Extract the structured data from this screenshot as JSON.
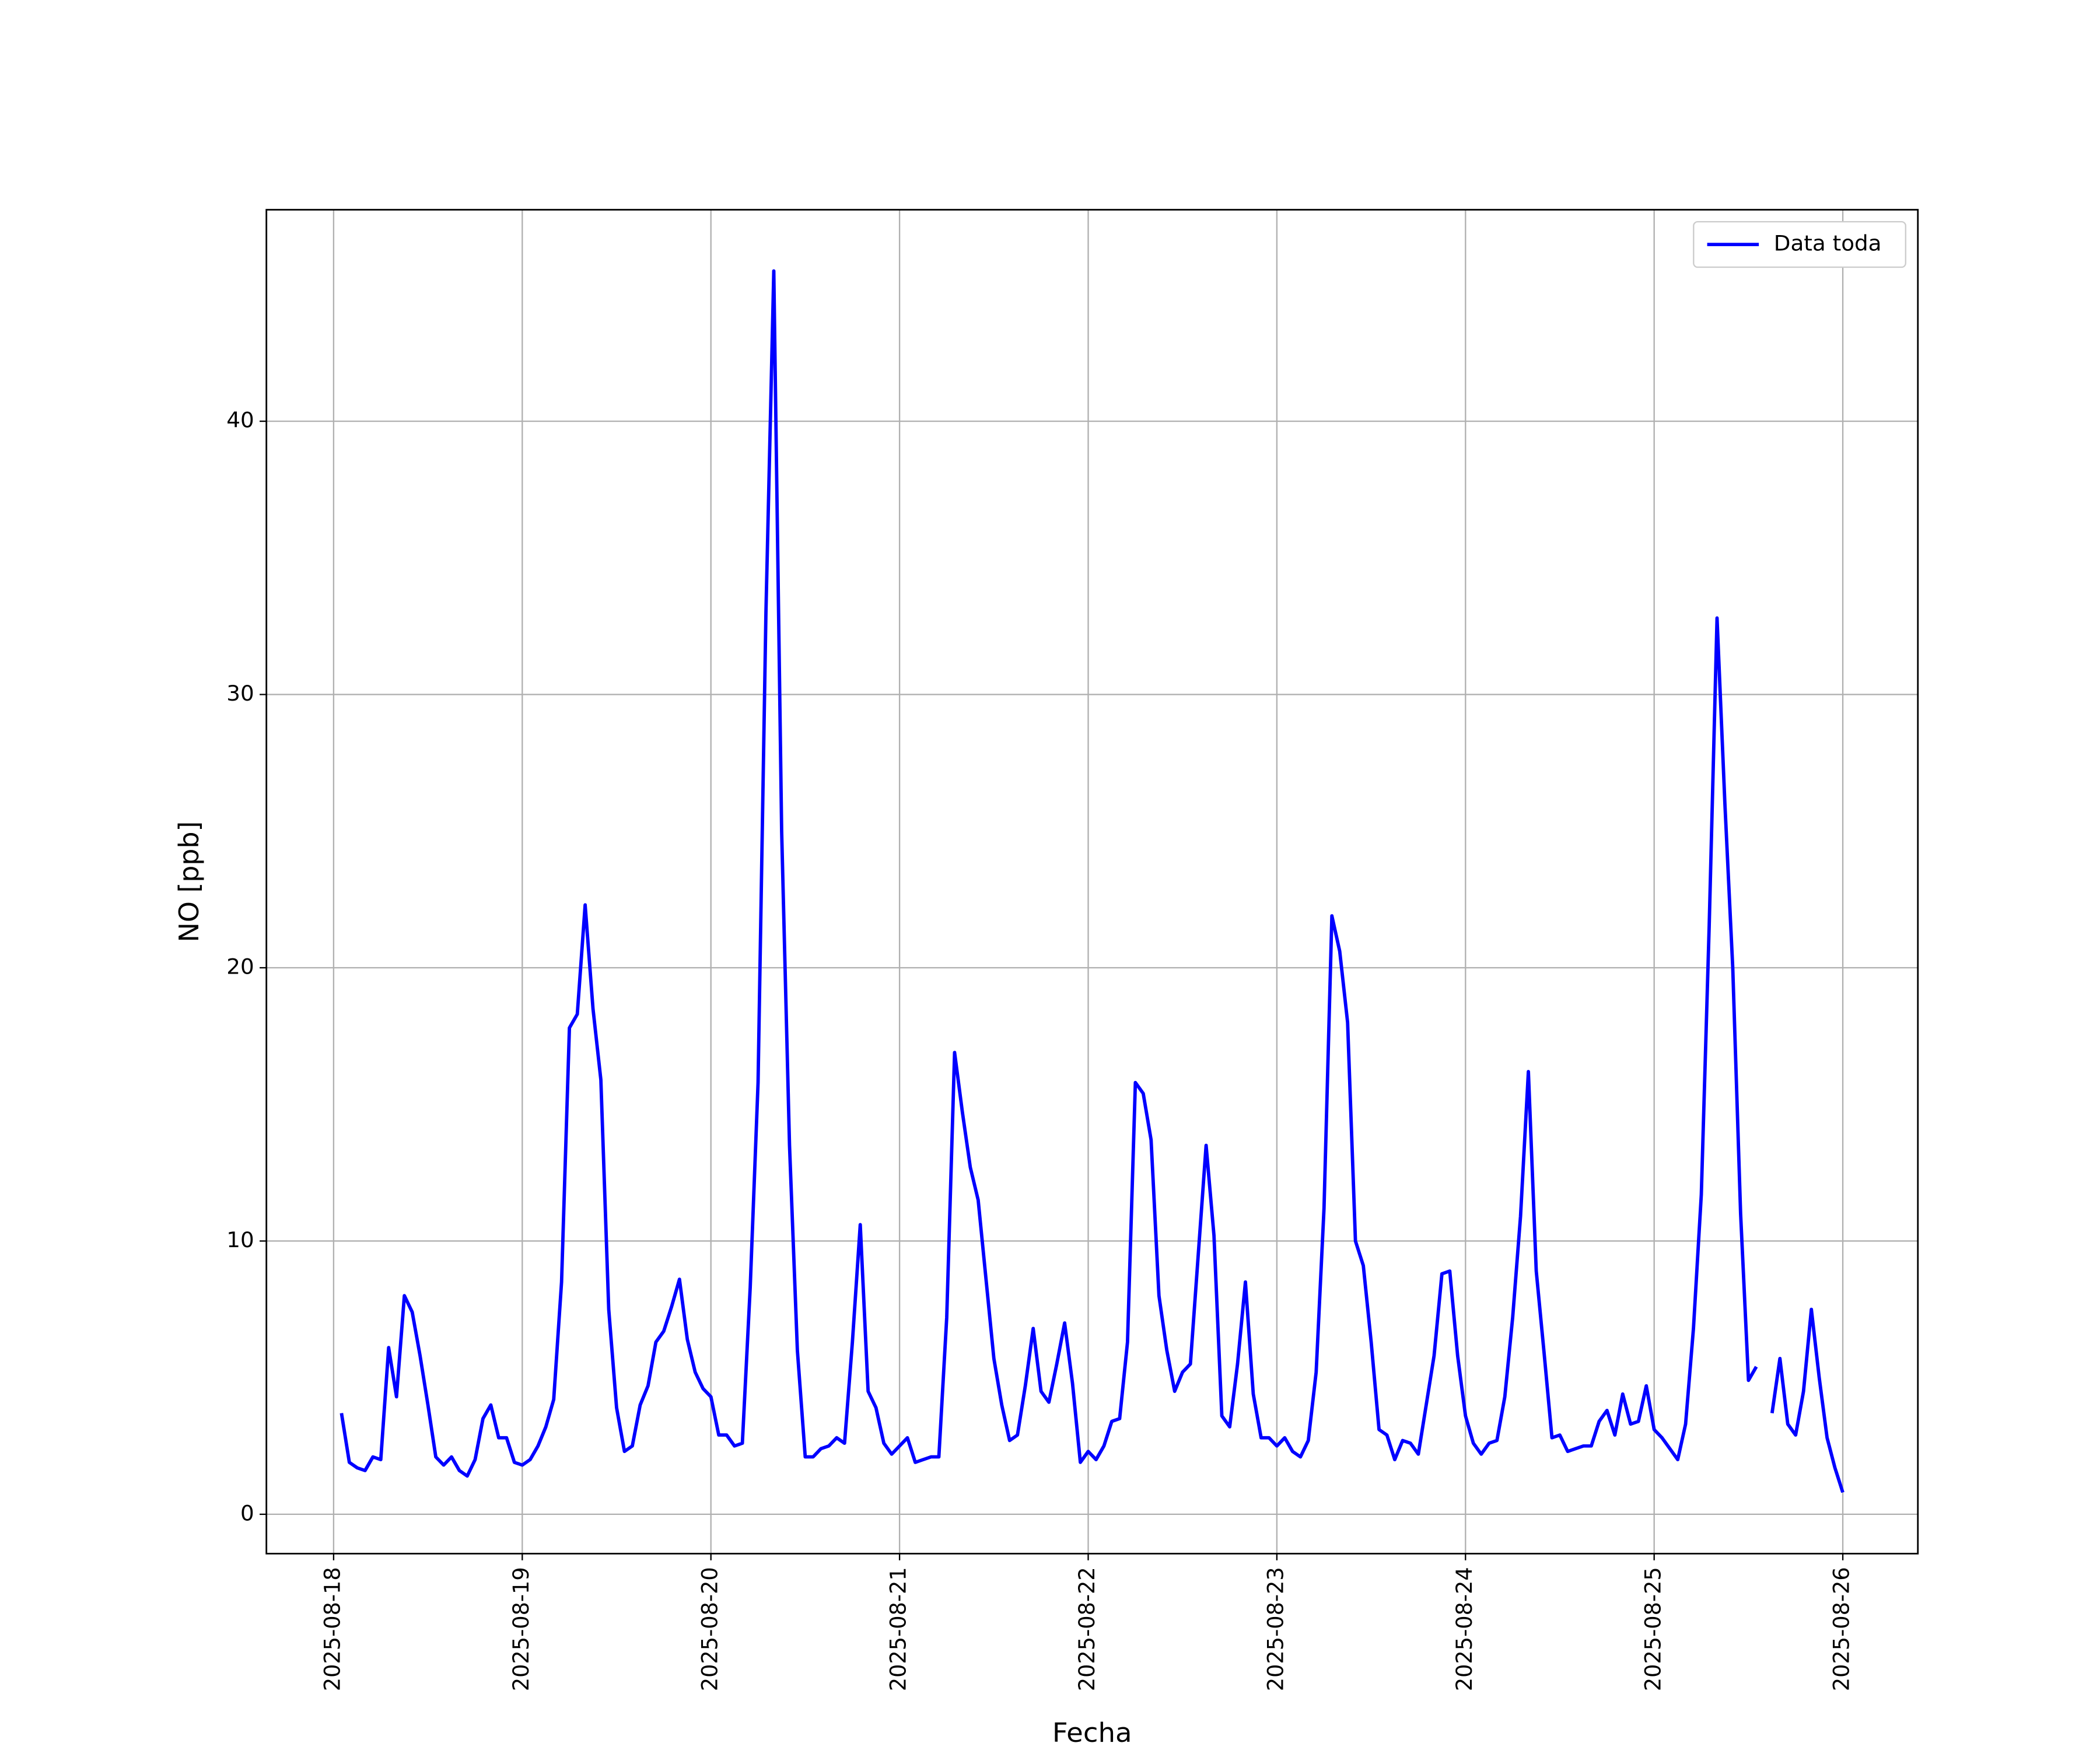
{
  "chart_data": {
    "type": "line",
    "xlabel": "Fecha",
    "ylabel": "NO [ppb]",
    "xlim": [
      "2025-08-17T15:27",
      "2025-08-26T09:33"
    ],
    "xticks": [
      "2025-08-18",
      "2025-08-19",
      "2025-08-20",
      "2025-08-21",
      "2025-08-22",
      "2025-08-23",
      "2025-08-24",
      "2025-08-25",
      "2025-08-26"
    ],
    "ylim": [
      -1.44,
      47.74
    ],
    "yticks": [
      0,
      10,
      20,
      30,
      40
    ],
    "grid": true,
    "legend": "upper right",
    "x": [
      "2025-08-18T01:00",
      "2025-08-18T02:00",
      "2025-08-18T03:00",
      "2025-08-18T04:00",
      "2025-08-18T05:00",
      "2025-08-18T06:00",
      "2025-08-18T07:00",
      "2025-08-18T08:00",
      "2025-08-18T09:00",
      "2025-08-18T10:00",
      "2025-08-18T11:00",
      "2025-08-18T12:00",
      "2025-08-18T13:00",
      "2025-08-18T14:00",
      "2025-08-18T15:00",
      "2025-08-18T16:00",
      "2025-08-18T17:00",
      "2025-08-18T18:00",
      "2025-08-18T19:00",
      "2025-08-18T20:00",
      "2025-08-18T21:00",
      "2025-08-18T22:00",
      "2025-08-18T23:00",
      "2025-08-19T00:00",
      "2025-08-19T01:00",
      "2025-08-19T02:00",
      "2025-08-19T03:00",
      "2025-08-19T04:00",
      "2025-08-19T05:00",
      "2025-08-19T06:00",
      "2025-08-19T07:00",
      "2025-08-19T08:00",
      "2025-08-19T09:00",
      "2025-08-19T10:00",
      "2025-08-19T11:00",
      "2025-08-19T12:00",
      "2025-08-19T13:00",
      "2025-08-19T14:00",
      "2025-08-19T15:00",
      "2025-08-19T16:00",
      "2025-08-19T17:00",
      "2025-08-19T18:00",
      "2025-08-19T19:00",
      "2025-08-19T20:00",
      "2025-08-19T21:00",
      "2025-08-19T22:00",
      "2025-08-19T23:00",
      "2025-08-20T00:00",
      "2025-08-20T01:00",
      "2025-08-20T02:00",
      "2025-08-20T03:00",
      "2025-08-20T04:00",
      "2025-08-20T05:00",
      "2025-08-20T06:00",
      "2025-08-20T07:00",
      "2025-08-20T08:00",
      "2025-08-20T09:00",
      "2025-08-20T10:00",
      "2025-08-20T11:00",
      "2025-08-20T12:00",
      "2025-08-20T13:00",
      "2025-08-20T14:00",
      "2025-08-20T15:00",
      "2025-08-20T16:00",
      "2025-08-20T17:00",
      "2025-08-20T18:00",
      "2025-08-20T19:00",
      "2025-08-20T20:00",
      "2025-08-20T21:00",
      "2025-08-20T22:00",
      "2025-08-20T23:00",
      "2025-08-21T00:00",
      "2025-08-21T01:00",
      "2025-08-21T02:00",
      "2025-08-21T03:00",
      "2025-08-21T04:00",
      "2025-08-21T05:00",
      "2025-08-21T06:00",
      "2025-08-21T07:00",
      "2025-08-21T08:00",
      "2025-08-21T09:00",
      "2025-08-21T10:00",
      "2025-08-21T11:00",
      "2025-08-21T12:00",
      "2025-08-21T13:00",
      "2025-08-21T14:00",
      "2025-08-21T15:00",
      "2025-08-21T16:00",
      "2025-08-21T17:00",
      "2025-08-21T18:00",
      "2025-08-21T19:00",
      "2025-08-21T20:00",
      "2025-08-21T21:00",
      "2025-08-21T22:00",
      "2025-08-21T23:00",
      "2025-08-22T00:00",
      "2025-08-22T01:00",
      "2025-08-22T02:00",
      "2025-08-22T03:00",
      "2025-08-22T04:00",
      "2025-08-22T05:00",
      "2025-08-22T06:00",
      "2025-08-22T07:00",
      "2025-08-22T08:00",
      "2025-08-22T09:00",
      "2025-08-22T10:00",
      "2025-08-22T11:00",
      "2025-08-22T12:00",
      "2025-08-22T13:00",
      "2025-08-22T14:00",
      "2025-08-22T15:00",
      "2025-08-22T16:00",
      "2025-08-22T17:00",
      "2025-08-22T18:00",
      "2025-08-22T19:00",
      "2025-08-22T20:00",
      "2025-08-22T21:00",
      "2025-08-22T22:00",
      "2025-08-22T23:00",
      "2025-08-23T00:00",
      "2025-08-23T01:00",
      "2025-08-23T02:00",
      "2025-08-23T03:00",
      "2025-08-23T04:00",
      "2025-08-23T05:00",
      "2025-08-23T06:00",
      "2025-08-23T07:00",
      "2025-08-23T08:00",
      "2025-08-23T09:00",
      "2025-08-23T10:00",
      "2025-08-23T11:00",
      "2025-08-23T12:00",
      "2025-08-23T13:00",
      "2025-08-23T14:00",
      "2025-08-23T15:00",
      "2025-08-23T16:00",
      "2025-08-23T17:00",
      "2025-08-23T18:00",
      "2025-08-23T19:00",
      "2025-08-23T20:00",
      "2025-08-23T21:00",
      "2025-08-23T22:00",
      "2025-08-23T23:00",
      "2025-08-24T00:00",
      "2025-08-24T01:00",
      "2025-08-24T02:00",
      "2025-08-24T03:00",
      "2025-08-24T04:00",
      "2025-08-24T05:00",
      "2025-08-24T06:00",
      "2025-08-24T07:00",
      "2025-08-24T08:00",
      "2025-08-24T09:00",
      "2025-08-24T10:00",
      "2025-08-24T11:00",
      "2025-08-24T12:00",
      "2025-08-24T13:00",
      "2025-08-24T14:00",
      "2025-08-24T15:00",
      "2025-08-24T16:00",
      "2025-08-24T17:00",
      "2025-08-24T18:00",
      "2025-08-24T19:00",
      "2025-08-24T20:00",
      "2025-08-24T21:00",
      "2025-08-24T22:00",
      "2025-08-24T23:00",
      "2025-08-25T00:00",
      "2025-08-25T01:00",
      "2025-08-25T02:00",
      "2025-08-25T03:00",
      "2025-08-25T04:00",
      "2025-08-25T05:00",
      "2025-08-25T06:00",
      "2025-08-25T07:00",
      "2025-08-25T08:00",
      "2025-08-25T09:00",
      "2025-08-25T10:00",
      "2025-08-25T11:00",
      "2025-08-25T12:00",
      "2025-08-25T13:00",
      "2025-08-25T14:00",
      "2025-08-25T15:00",
      "2025-08-25T16:00",
      "2025-08-25T17:00",
      "2025-08-25T18:00",
      "2025-08-25T19:00",
      "2025-08-25T20:00",
      "2025-08-25T21:00",
      "2025-08-25T22:00",
      "2025-08-25T23:00",
      "2025-08-26T00:00"
    ],
    "series": [
      {
        "name": "Data toda",
        "color": "#0000ff",
        "values": [
          3.7,
          1.9,
          1.7,
          1.6,
          2.1,
          2.0,
          6.1,
          4.3,
          8.0,
          7.4,
          5.8,
          4.0,
          2.1,
          1.8,
          2.1,
          1.6,
          1.4,
          2.0,
          3.5,
          4.0,
          2.8,
          2.8,
          1.9,
          1.8,
          2.0,
          2.5,
          3.2,
          4.2,
          8.5,
          17.8,
          18.3,
          22.3,
          18.5,
          15.9,
          7.5,
          3.9,
          2.3,
          2.5,
          4.0,
          4.7,
          6.3,
          6.7,
          7.6,
          8.6,
          6.4,
          5.2,
          4.6,
          4.3,
          2.9,
          2.9,
          2.5,
          2.6,
          8.3,
          15.8,
          33.0,
          45.5,
          25.0,
          13.5,
          6.0,
          2.1,
          2.1,
          2.4,
          2.5,
          2.8,
          2.6,
          6.3,
          10.6,
          4.5,
          3.9,
          2.6,
          2.2,
          2.5,
          2.8,
          1.9,
          2.0,
          2.1,
          2.1,
          7.2,
          16.9,
          14.7,
          12.7,
          11.5,
          8.6,
          5.7,
          4.0,
          2.7,
          2.9,
          4.7,
          6.8,
          4.5,
          4.1,
          5.5,
          7.0,
          4.8,
          1.9,
          2.3,
          2.0,
          2.5,
          3.4,
          3.5,
          6.3,
          15.8,
          15.4,
          13.7,
          8.0,
          6.0,
          4.5,
          5.2,
          5.5,
          9.5,
          13.5,
          10.2,
          3.6,
          3.2,
          5.5,
          8.5,
          4.4,
          2.8,
          2.8,
          2.5,
          2.8,
          2.3,
          2.1,
          2.7,
          5.2,
          11.2,
          21.9,
          20.6,
          18.0,
          10.0,
          9.1,
          6.3,
          3.1,
          2.9,
          2.0,
          2.7,
          2.6,
          2.2,
          4.0,
          5.8,
          8.8,
          8.9,
          5.8,
          3.6,
          2.6,
          2.2,
          2.6,
          2.7,
          4.3,
          7.2,
          10.9,
          16.2,
          8.9,
          5.9,
          2.8,
          2.9,
          2.3,
          2.4,
          2.5,
          2.5,
          3.4,
          3.8,
          2.9,
          4.4,
          3.3,
          3.4,
          4.7,
          3.1,
          2.8,
          2.4,
          2.0,
          3.3,
          6.8,
          11.7,
          21.5,
          32.8,
          26.0,
          20.0,
          11.0,
          4.9,
          5.4,
          null,
          3.7,
          5.7,
          3.3,
          2.9,
          4.5,
          7.5,
          5.0,
          2.8,
          1.7,
          0.8
        ]
      }
    ]
  }
}
